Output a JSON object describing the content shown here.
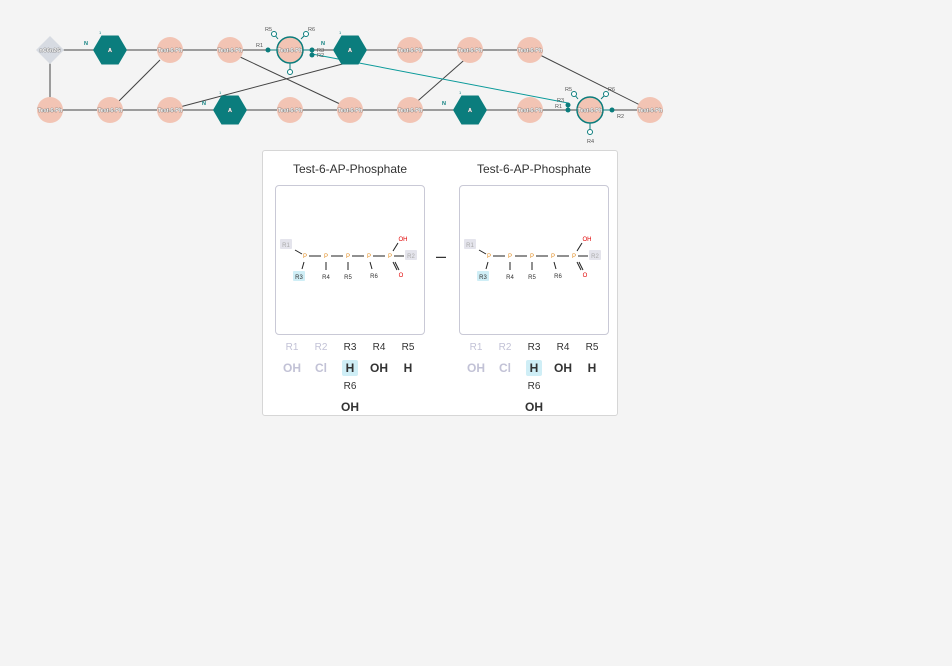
{
  "colors": {
    "background": "#f4f4f4",
    "peptide_fill": "#f2c4b4",
    "teal": "#0b7d7d",
    "line": "#444444",
    "highlight": "#cfeef6",
    "dim_text": "#c2c2d6",
    "oxygen": "#e00000",
    "phosphorus": "#e08a1e"
  },
  "graph": {
    "row1": [
      "nC6n2G",
      "A",
      "Test-6-Ph",
      "Test-6-Ph",
      "Test-6-Ph",
      "A",
      "Test-6-Ph",
      "Test-6-Ph",
      "Test-6-Ph"
    ],
    "row2": [
      "Test-6-Ph",
      "Test-6-Ph",
      "Test-6-Ph",
      "A",
      "Test-6-Ph",
      "Test-6-Ph",
      "Test-6-Ph",
      "A",
      "Test-6-Ph",
      "Test-6-Ph",
      "Test-6-Ph"
    ],
    "link_label_n": "N",
    "hex_index_label": "1",
    "r_labels": [
      "R1",
      "R2",
      "R3",
      "R4",
      "R5",
      "R6"
    ]
  },
  "tooltip": {
    "minus": "–",
    "panels": [
      {
        "title": "Test-6-AP-Phosphate",
        "mol": {
          "atom_p": "P",
          "oh": "OH",
          "o": "O",
          "r1": "R1",
          "r2": "R2",
          "r3": "R3",
          "r4": "R4",
          "r5": "R5",
          "r6": "R6"
        },
        "rgroups": [
          {
            "name": "R1",
            "value": "OH",
            "dim": true,
            "hl": false
          },
          {
            "name": "R2",
            "value": "Cl",
            "dim": true,
            "hl": false
          },
          {
            "name": "R3",
            "value": "H",
            "dim": false,
            "hl": true
          },
          {
            "name": "R4",
            "value": "OH",
            "dim": false,
            "hl": false
          },
          {
            "name": "R5",
            "value": "H",
            "dim": false,
            "hl": false
          },
          {
            "name": "R6",
            "value": "OH",
            "dim": false,
            "hl": false
          }
        ]
      },
      {
        "title": "Test-6-AP-Phosphate",
        "mol": {
          "atom_p": "P",
          "oh": "OH",
          "o": "O",
          "r1": "R1",
          "r2": "R2",
          "r3": "R3",
          "r4": "R4",
          "r5": "R5",
          "r6": "R6"
        },
        "rgroups": [
          {
            "name": "R1",
            "value": "OH",
            "dim": true,
            "hl": false
          },
          {
            "name": "R2",
            "value": "Cl",
            "dim": true,
            "hl": false
          },
          {
            "name": "R3",
            "value": "H",
            "dim": false,
            "hl": true
          },
          {
            "name": "R4",
            "value": "OH",
            "dim": false,
            "hl": false
          },
          {
            "name": "R5",
            "value": "H",
            "dim": false,
            "hl": false
          },
          {
            "name": "R6",
            "value": "OH",
            "dim": false,
            "hl": false
          }
        ]
      }
    ]
  }
}
